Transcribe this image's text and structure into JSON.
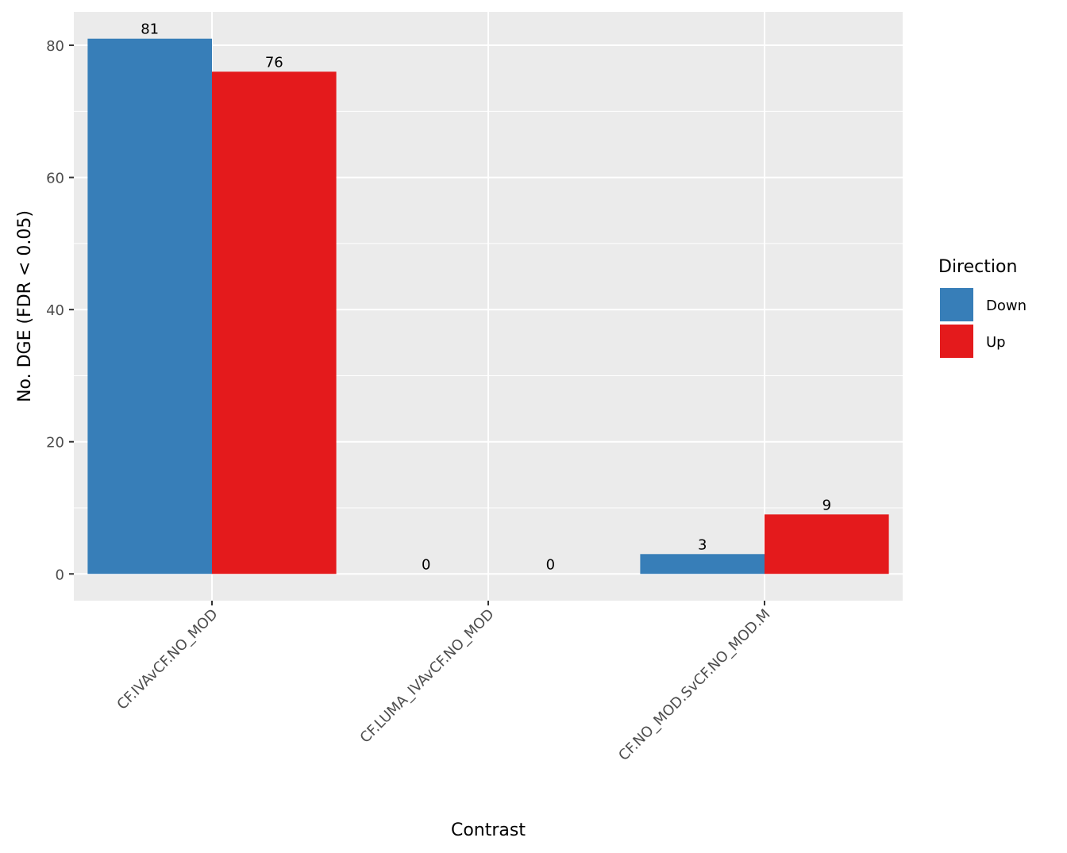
{
  "chart_data": {
    "type": "bar",
    "title": "",
    "xlabel": "Contrast",
    "ylabel": "No. DGE (FDR < 0.05)",
    "categories": [
      "CF.IVAvCF.NO_MOD",
      "CF.LUMA_IVAvCF.NO_MOD",
      "CF.NO_MOD.SvCF.NO_MOD.M"
    ],
    "series": [
      {
        "name": "Down",
        "color": "#377EB8",
        "values": [
          81,
          0,
          3
        ]
      },
      {
        "name": "Up",
        "color": "#E41A1C",
        "values": [
          76,
          0,
          9
        ]
      }
    ],
    "ylim": [
      -4.05,
      85.05
    ],
    "yticks": [
      0,
      20,
      40,
      60,
      80
    ],
    "grid": true,
    "panel_background": "#EBEBEB",
    "legend": {
      "title": "Direction",
      "position": "right"
    },
    "bar_labels": true
  }
}
